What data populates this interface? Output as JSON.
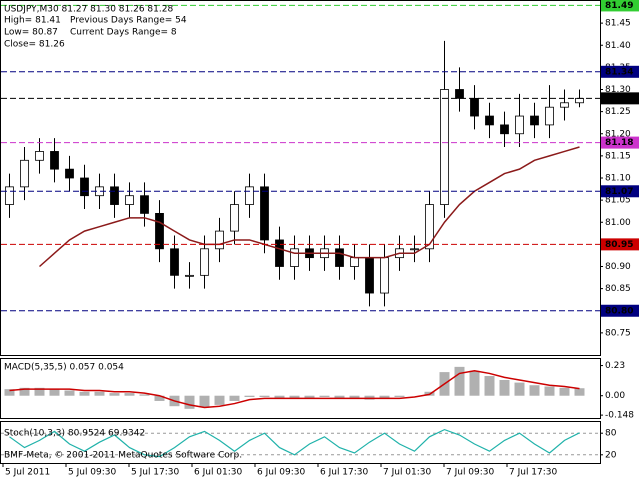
{
  "chart_data": [
    {
      "type": "candlestick",
      "title": "USDJPY,M30  81.27 81.30 81.26 81.28",
      "annotations": [
        "High= 81.41",
        "Previous Days Range= 54",
        "Low= 80.87",
        "Current Days Range= 8",
        "Close= 81.26"
      ],
      "open": [
        81.04,
        81.08,
        81.14,
        81.16,
        81.12,
        81.1,
        81.06,
        81.08,
        81.04,
        81.06,
        81.02,
        80.94,
        80.88,
        80.88,
        80.94,
        80.98,
        81.04,
        81.08,
        80.96,
        80.9,
        80.94,
        80.92,
        80.94,
        80.9,
        80.92,
        80.84,
        80.92,
        80.94,
        80.94,
        81.04,
        81.3,
        81.28,
        81.24,
        81.22,
        81.2,
        81.24,
        81.22,
        81.26,
        81.27
      ],
      "high": [
        81.11,
        81.17,
        81.19,
        81.19,
        81.15,
        81.13,
        81.11,
        81.11,
        81.09,
        81.09,
        81.05,
        80.97,
        80.91,
        80.97,
        81.01,
        81.07,
        81.11,
        81.11,
        80.99,
        80.97,
        80.97,
        80.97,
        80.97,
        80.95,
        80.95,
        80.95,
        80.97,
        80.97,
        81.07,
        81.41,
        81.35,
        81.31,
        81.27,
        81.25,
        81.29,
        81.27,
        81.31,
        81.3,
        81.3
      ],
      "low": [
        81.01,
        81.05,
        81.11,
        81.09,
        81.07,
        81.03,
        81.03,
        81.01,
        81.01,
        80.99,
        80.91,
        80.85,
        80.85,
        80.85,
        80.91,
        80.95,
        81.01,
        80.93,
        80.87,
        80.87,
        80.89,
        80.89,
        80.87,
        80.87,
        80.81,
        80.81,
        80.89,
        80.91,
        80.91,
        81.01,
        81.25,
        81.21,
        81.19,
        81.17,
        81.17,
        81.19,
        81.19,
        81.23,
        81.26
      ],
      "close": [
        81.08,
        81.14,
        81.16,
        81.12,
        81.1,
        81.06,
        81.08,
        81.04,
        81.06,
        81.02,
        80.94,
        80.88,
        80.88,
        80.94,
        80.98,
        81.04,
        81.08,
        80.96,
        80.9,
        80.94,
        80.92,
        80.94,
        80.9,
        80.92,
        80.84,
        80.92,
        80.94,
        80.94,
        81.04,
        81.3,
        81.28,
        81.24,
        81.22,
        81.2,
        81.24,
        81.22,
        81.26,
        81.27,
        81.28
      ],
      "ma": {
        "color": "#8b1a1a",
        "values": [
          null,
          null,
          80.9,
          80.93,
          80.96,
          80.98,
          80.99,
          81.0,
          81.01,
          81.01,
          81.0,
          80.98,
          80.96,
          80.95,
          80.95,
          80.96,
          80.96,
          80.95,
          80.94,
          80.93,
          80.93,
          80.93,
          80.93,
          80.92,
          80.92,
          80.92,
          80.93,
          80.93,
          80.95,
          81.0,
          81.04,
          81.07,
          81.09,
          81.11,
          81.12,
          81.14,
          81.15,
          81.16,
          81.17
        ]
      },
      "levels": [
        {
          "value": 81.49,
          "color": "#32cd32"
        },
        {
          "value": 81.34,
          "color": "#000080"
        },
        {
          "value": 81.28,
          "color": "#000000"
        },
        {
          "value": 81.18,
          "color": "#cc33cc"
        },
        {
          "value": 81.07,
          "color": "#000080"
        },
        {
          "value": 80.95,
          "color": "#cc0000"
        },
        {
          "value": 80.8,
          "label": "80.80",
          "color": "#000080"
        }
      ],
      "ylim": [
        80.7,
        81.5
      ],
      "yticks": [
        81.45,
        {
          "value": 81.4,
          "label": "81.40"
        },
        81.35,
        {
          "value": 81.3,
          "label": "81.30"
        },
        81.25,
        {
          "value": 81.2,
          "label": "81.20"
        },
        81.15,
        {
          "value": 81.1,
          "label": "81.10"
        },
        81.05,
        {
          "value": 81.0,
          "label": "81.00"
        },
        80.95,
        {
          "value": 80.9,
          "label": "80.90"
        },
        80.85,
        {
          "value": 80.8,
          "label": "80.80"
        },
        80.75
      ]
    },
    {
      "type": "macd",
      "title": "MACD(5,35,5) 0.057 0.054",
      "histogram": {
        "color": "#b0b0b0",
        "values": [
          0.05,
          0.06,
          0.06,
          0.05,
          0.04,
          0.03,
          0.03,
          0.02,
          0.02,
          0.01,
          -0.04,
          -0.08,
          -0.1,
          -0.09,
          -0.07,
          -0.04,
          -0.01,
          -0.01,
          -0.02,
          -0.02,
          -0.02,
          -0.01,
          -0.02,
          -0.02,
          -0.03,
          -0.02,
          -0.01,
          0.0,
          0.03,
          0.18,
          0.22,
          0.19,
          0.15,
          0.12,
          0.1,
          0.08,
          0.07,
          0.06,
          0.057
        ]
      },
      "signal": {
        "color": "#cc0000",
        "values": [
          0.04,
          0.05,
          0.05,
          0.05,
          0.05,
          0.04,
          0.04,
          0.03,
          0.03,
          0.02,
          0.0,
          -0.04,
          -0.07,
          -0.09,
          -0.08,
          -0.06,
          -0.03,
          -0.02,
          -0.02,
          -0.02,
          -0.02,
          -0.02,
          -0.02,
          -0.02,
          -0.02,
          -0.02,
          -0.02,
          -0.01,
          0.01,
          0.09,
          0.17,
          0.19,
          0.17,
          0.14,
          0.12,
          0.1,
          0.08,
          0.07,
          0.054
        ]
      },
      "ylim": [
        -0.17,
        0.28
      ],
      "yticks": [
        0.23,
        {
          "value": 0,
          "label": "0.00"
        },
        -0.148
      ]
    },
    {
      "type": "stochastic",
      "title": "Stoch(10,3,3) 80.9524 69.9342",
      "annotation": "BMF-Meta, © 2001-2011 MetaQuotes Software Corp.",
      "series": {
        "color": "#20b2aa",
        "values": [
          70,
          40,
          60,
          85,
          50,
          30,
          55,
          75,
          40,
          20,
          15,
          40,
          70,
          85,
          60,
          30,
          60,
          80,
          40,
          20,
          50,
          70,
          40,
          25,
          55,
          80,
          50,
          30,
          70,
          90,
          75,
          50,
          30,
          60,
          80,
          50,
          25,
          60,
          81
        ]
      },
      "ylim": [
        0,
        100
      ],
      "yticks": [
        80,
        20
      ],
      "x_labels": [
        "5 Jul 2011",
        "5 Jul 09:30",
        "5 Jul 17:30",
        "6 Jul 01:30",
        "6 Jul 09:30",
        "6 Jul 17:30",
        "7 Jul 01:30",
        "7 Jul 09:30",
        "7 Jul 17:30"
      ]
    }
  ]
}
